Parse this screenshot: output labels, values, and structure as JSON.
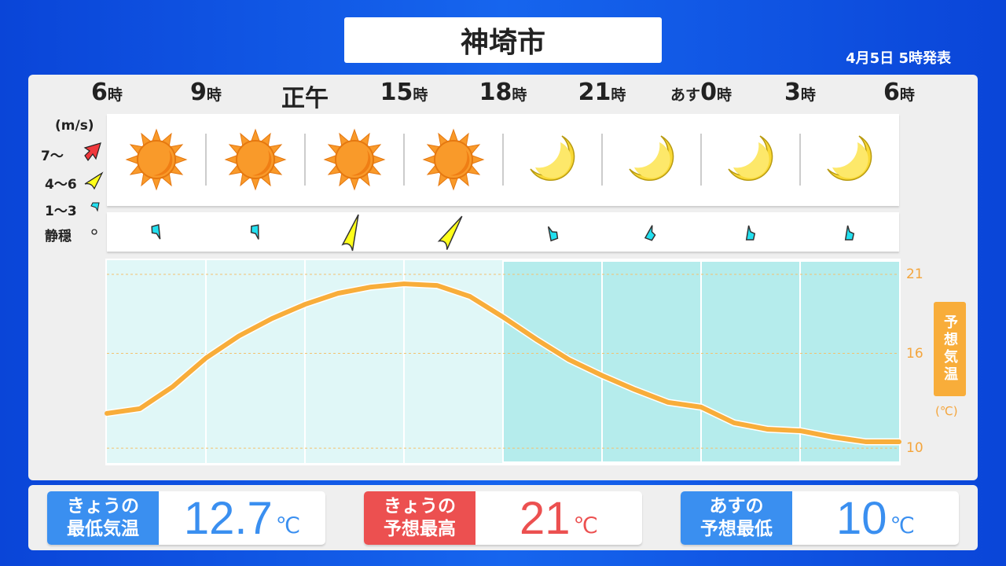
{
  "header": {
    "title": "神埼市",
    "issued": "4月5日 5時発表"
  },
  "times": [
    {
      "pre": "",
      "num": "6",
      "suf": "時"
    },
    {
      "pre": "",
      "num": "9",
      "suf": "時"
    },
    {
      "pre": "",
      "num": "正午",
      "suf": ""
    },
    {
      "pre": "",
      "num": "15",
      "suf": "時"
    },
    {
      "pre": "",
      "num": "18",
      "suf": "時"
    },
    {
      "pre": "",
      "num": "21",
      "suf": "時"
    },
    {
      "pre": "あす",
      "num": "0",
      "suf": "時"
    },
    {
      "pre": "",
      "num": "3",
      "suf": "時"
    },
    {
      "pre": "",
      "num": "6",
      "suf": "時"
    }
  ],
  "weather": [
    "sun-icon",
    "sun-icon",
    "sun-icon",
    "sun-icon",
    "moon-icon",
    "moon-icon",
    "moon-icon",
    "moon-icon"
  ],
  "wind_legend": {
    "unit": "(m/s)",
    "items": [
      {
        "label": "7〜",
        "color": "#f0383c"
      },
      {
        "label": "4〜6",
        "color": "#ffff1a"
      },
      {
        "label": "1〜3",
        "color": "#22e0f0"
      },
      {
        "label": "静穏",
        "color": "#222222"
      }
    ]
  },
  "wind": [
    {
      "class": "1〜3",
      "dir_deg": 345
    },
    {
      "class": "1〜3",
      "dir_deg": 350
    },
    {
      "class": "4〜6",
      "dir_deg": 15
    },
    {
      "class": "4〜6",
      "dir_deg": 30
    },
    {
      "class": "1〜3",
      "dir_deg": 160
    },
    {
      "class": "1〜3",
      "dir_deg": 200
    },
    {
      "class": "1〜3",
      "dir_deg": 180
    },
    {
      "class": "1〜3",
      "dir_deg": 180
    }
  ],
  "chart_data": {
    "type": "line",
    "ylabel": "予想気温",
    "yunit": "(℃)",
    "yticks": [
      10,
      16,
      21
    ],
    "ylim": [
      9.0,
      21.9
    ],
    "x_hours": [
      6,
      7,
      8,
      9,
      10,
      11,
      12,
      13,
      14,
      15,
      16,
      17,
      18,
      19,
      20,
      21,
      22,
      23,
      0,
      1,
      2,
      3,
      4,
      5,
      6
    ],
    "values": [
      12.2,
      12.5,
      13.9,
      15.7,
      17.1,
      18.2,
      19.1,
      19.8,
      20.2,
      20.4,
      20.3,
      19.6,
      18.3,
      16.9,
      15.6,
      14.6,
      13.7,
      12.9,
      12.6,
      11.6,
      11.2,
      11.1,
      10.7,
      10.4,
      10.4
    ],
    "night_from_hour": 18,
    "line_color": "#f8ad3a",
    "grid": true
  },
  "summary": [
    {
      "label1": "きょうの",
      "label2": "最低気温",
      "value": "12.7",
      "unit": "℃",
      "color": "#3a8ff0"
    },
    {
      "label1": "きょうの",
      "label2": "予想最高",
      "value": "21",
      "unit": "℃",
      "color": "#ec5050"
    },
    {
      "label1": "あすの",
      "label2": "予想最低",
      "value": "10",
      "unit": "℃",
      "color": "#3a8ff0"
    }
  ]
}
